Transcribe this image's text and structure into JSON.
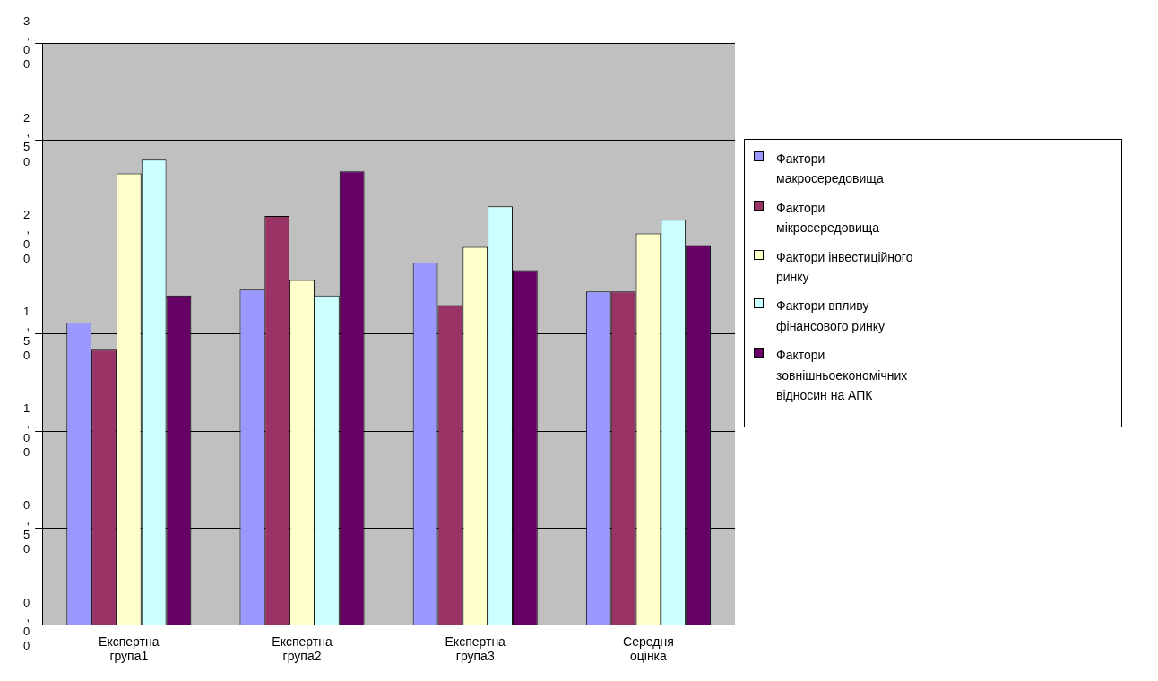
{
  "chart_data": {
    "type": "bar",
    "categories": [
      "Експертна група1",
      "Експертна група2",
      "Експертна група3",
      "Середня оцінка"
    ],
    "series": [
      {
        "name": "Фактори макросередовища",
        "color": "#9999ff",
        "values": [
          1.56,
          1.73,
          1.87,
          1.72
        ]
      },
      {
        "name": "Фактори мікросередовища",
        "color": "#993366",
        "values": [
          1.42,
          2.11,
          1.65,
          1.72
        ]
      },
      {
        "name": "Фактори інвестиційного ринку",
        "color": "#ffffcc",
        "values": [
          2.33,
          1.78,
          1.95,
          2.02
        ]
      },
      {
        "name": "Фактори впливу фінансового ринку",
        "color": "#ccffff",
        "values": [
          2.4,
          1.7,
          2.16,
          2.09
        ]
      },
      {
        "name": "Фактори зовнішньоекономічних відносин на АПК",
        "color": "#660066",
        "values": [
          1.7,
          2.34,
          1.83,
          1.96
        ]
      }
    ],
    "ylim": [
      0,
      3
    ],
    "yticks": [
      {
        "value": 0,
        "label": "0,00"
      },
      {
        "value": 0.5,
        "label": "0,50"
      },
      {
        "value": 1,
        "label": "1,00"
      },
      {
        "value": 1.5,
        "label": "1,50"
      },
      {
        "value": 2,
        "label": "2,00"
      },
      {
        "value": 2.5,
        "label": "2,50"
      },
      {
        "value": 3,
        "label": "3,00"
      }
    ],
    "grid": "y",
    "legend": "right"
  }
}
